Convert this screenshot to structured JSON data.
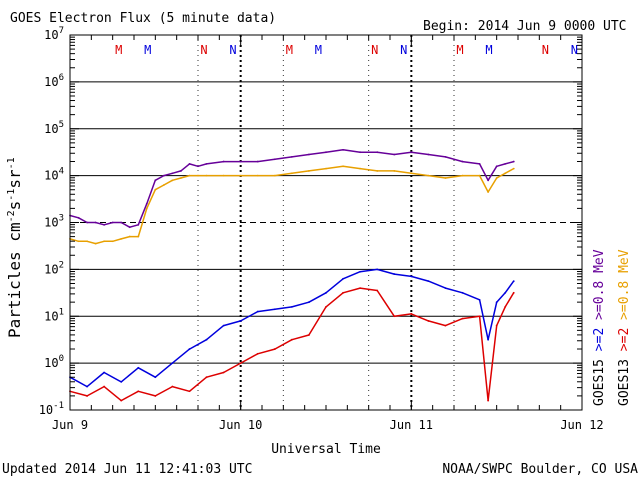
{
  "chart_data": {
    "type": "line",
    "title": "GOES Electron Flux (5 minute data)",
    "begin_label": "Begin: 2014 Jun 9 0000 UTC",
    "xlabel": "Universal Time",
    "ylabel_main": "Particles cm",
    "ylabel_exp1": "-2",
    "ylabel_mid1": "s",
    "ylabel_exp2": "-1",
    "ylabel_mid2": "sr",
    "ylabel_exp3": "-1",
    "footer_left": "Updated 2014 Jun 11 12:41:03 UTC",
    "footer_right": "NOAA/SWPC Boulder, CO USA",
    "xlim_days": [
      0,
      3
    ],
    "ylim_log10": [
      -1,
      7
    ],
    "x_ticks": [
      {
        "day": 0,
        "label": "Jun 9"
      },
      {
        "day": 1,
        "label": "Jun 10"
      },
      {
        "day": 2,
        "label": "Jun 11"
      },
      {
        "day": 3,
        "label": "Jun 12"
      }
    ],
    "y_ticks": [
      {
        "base": "10",
        "exp": "-1",
        "value": -1
      },
      {
        "base": "10",
        "exp": "0",
        "value": 0
      },
      {
        "base": "10",
        "exp": "1",
        "value": 1
      },
      {
        "base": "10",
        "exp": "2",
        "value": 2
      },
      {
        "base": "10",
        "exp": "3",
        "value": 3
      },
      {
        "base": "10",
        "exp": "4",
        "value": 4
      },
      {
        "base": "10",
        "exp": "5",
        "value": 5
      },
      {
        "base": "10",
        "exp": "6",
        "value": 6
      },
      {
        "base": "10",
        "exp": "7",
        "value": 7
      }
    ],
    "threshold_line": {
      "value": 3,
      "style": "dashed"
    },
    "markers": [
      {
        "label": "M",
        "day": 0.33,
        "color": "#dd0000"
      },
      {
        "label": "M",
        "day": 0.5,
        "color": "#0000dd"
      },
      {
        "label": "N",
        "day": 0.83,
        "color": "#dd0000"
      },
      {
        "label": "N",
        "day": 1.0,
        "color": "#0000dd"
      },
      {
        "label": "M",
        "day": 1.33,
        "color": "#dd0000"
      },
      {
        "label": "M",
        "day": 1.5,
        "color": "#0000dd"
      },
      {
        "label": "N",
        "day": 1.83,
        "color": "#dd0000"
      },
      {
        "label": "N",
        "day": 2.0,
        "color": "#0000dd"
      },
      {
        "label": "M",
        "day": 2.33,
        "color": "#dd0000"
      },
      {
        "label": "M",
        "day": 2.5,
        "color": "#0000dd"
      },
      {
        "label": "N",
        "day": 2.83,
        "color": "#dd0000"
      },
      {
        "label": "N",
        "day": 3.0,
        "color": "#0000dd"
      }
    ],
    "dotted_verticals_days": [
      0.75,
      1.25,
      1.75,
      2.25
    ],
    "legend": [
      {
        "text": "GOES15",
        "color": "#000000"
      },
      {
        "text": ">=2",
        "color": "#0000dd"
      },
      {
        "text": ">=0.8 MeV",
        "color": "#660099"
      },
      {
        "text": "GOES13",
        "color": "#000000"
      },
      {
        "text": ">=2",
        "color": "#dd0000"
      },
      {
        "text": ">=0.8 MeV",
        "color": "#e8a000"
      }
    ],
    "series": [
      {
        "name": "GOES15 >=0.8 MeV",
        "color": "#660099",
        "x_days": [
          0.0,
          0.05,
          0.1,
          0.15,
          0.2,
          0.25,
          0.3,
          0.35,
          0.4,
          0.45,
          0.5,
          0.55,
          0.6,
          0.65,
          0.7,
          0.75,
          0.8,
          0.9,
          1.0,
          1.1,
          1.2,
          1.3,
          1.4,
          1.5,
          1.6,
          1.7,
          1.8,
          1.9,
          2.0,
          2.1,
          2.2,
          2.3,
          2.4,
          2.45,
          2.5,
          2.55,
          2.6
        ],
        "log10_values": [
          3.15,
          3.1,
          3.0,
          3.0,
          2.95,
          3.0,
          3.0,
          2.9,
          2.95,
          3.4,
          3.9,
          4.0,
          4.05,
          4.1,
          4.25,
          4.2,
          4.25,
          4.3,
          4.3,
          4.3,
          4.35,
          4.4,
          4.45,
          4.5,
          4.55,
          4.5,
          4.5,
          4.45,
          4.5,
          4.45,
          4.4,
          4.3,
          4.25,
          3.9,
          4.2,
          4.25,
          4.3
        ]
      },
      {
        "name": "GOES13 >=0.8 MeV",
        "color": "#e8a000",
        "x_days": [
          0.0,
          0.05,
          0.1,
          0.15,
          0.2,
          0.25,
          0.3,
          0.35,
          0.4,
          0.45,
          0.5,
          0.55,
          0.6,
          0.65,
          0.7,
          0.75,
          0.8,
          0.9,
          1.0,
          1.1,
          1.2,
          1.3,
          1.4,
          1.5,
          1.6,
          1.7,
          1.8,
          1.9,
          2.0,
          2.1,
          2.2,
          2.3,
          2.4,
          2.45,
          2.5,
          2.55,
          2.6
        ],
        "log10_values": [
          2.65,
          2.6,
          2.6,
          2.55,
          2.6,
          2.6,
          2.65,
          2.7,
          2.7,
          3.3,
          3.7,
          3.8,
          3.9,
          3.95,
          4.0,
          4.0,
          4.0,
          4.0,
          4.0,
          4.0,
          4.0,
          4.05,
          4.1,
          4.15,
          4.2,
          4.15,
          4.1,
          4.1,
          4.05,
          4.0,
          3.95,
          4.0,
          4.0,
          3.65,
          3.95,
          4.05,
          4.15
        ]
      },
      {
        "name": "GOES15 >=2 MeV",
        "color": "#0000dd",
        "x_days": [
          0.0,
          0.1,
          0.2,
          0.3,
          0.4,
          0.5,
          0.6,
          0.7,
          0.8,
          0.9,
          1.0,
          1.1,
          1.2,
          1.3,
          1.4,
          1.5,
          1.6,
          1.7,
          1.8,
          1.9,
          2.0,
          2.1,
          2.2,
          2.3,
          2.4,
          2.45,
          2.5,
          2.55,
          2.6
        ],
        "log10_values": [
          -0.3,
          -0.5,
          -0.2,
          -0.4,
          -0.1,
          -0.3,
          0.0,
          0.3,
          0.5,
          0.8,
          0.9,
          1.1,
          1.15,
          1.2,
          1.3,
          1.5,
          1.8,
          1.95,
          2.0,
          1.9,
          1.85,
          1.75,
          1.6,
          1.5,
          1.35,
          0.5,
          1.3,
          1.5,
          1.75
        ]
      },
      {
        "name": "GOES13 >=2 MeV",
        "color": "#dd0000",
        "x_days": [
          0.0,
          0.1,
          0.2,
          0.3,
          0.4,
          0.5,
          0.6,
          0.7,
          0.8,
          0.9,
          1.0,
          1.1,
          1.2,
          1.3,
          1.4,
          1.5,
          1.6,
          1.7,
          1.8,
          1.9,
          2.0,
          2.1,
          2.2,
          2.3,
          2.4,
          2.45,
          2.5,
          2.55,
          2.6
        ],
        "log10_values": [
          -0.6,
          -0.7,
          -0.5,
          -0.8,
          -0.6,
          -0.7,
          -0.5,
          -0.6,
          -0.3,
          -0.2,
          0.0,
          0.2,
          0.3,
          0.5,
          0.6,
          1.2,
          1.5,
          1.6,
          1.55,
          1.0,
          1.05,
          0.9,
          0.8,
          0.95,
          1.0,
          -0.8,
          0.8,
          1.2,
          1.5
        ]
      }
    ]
  }
}
